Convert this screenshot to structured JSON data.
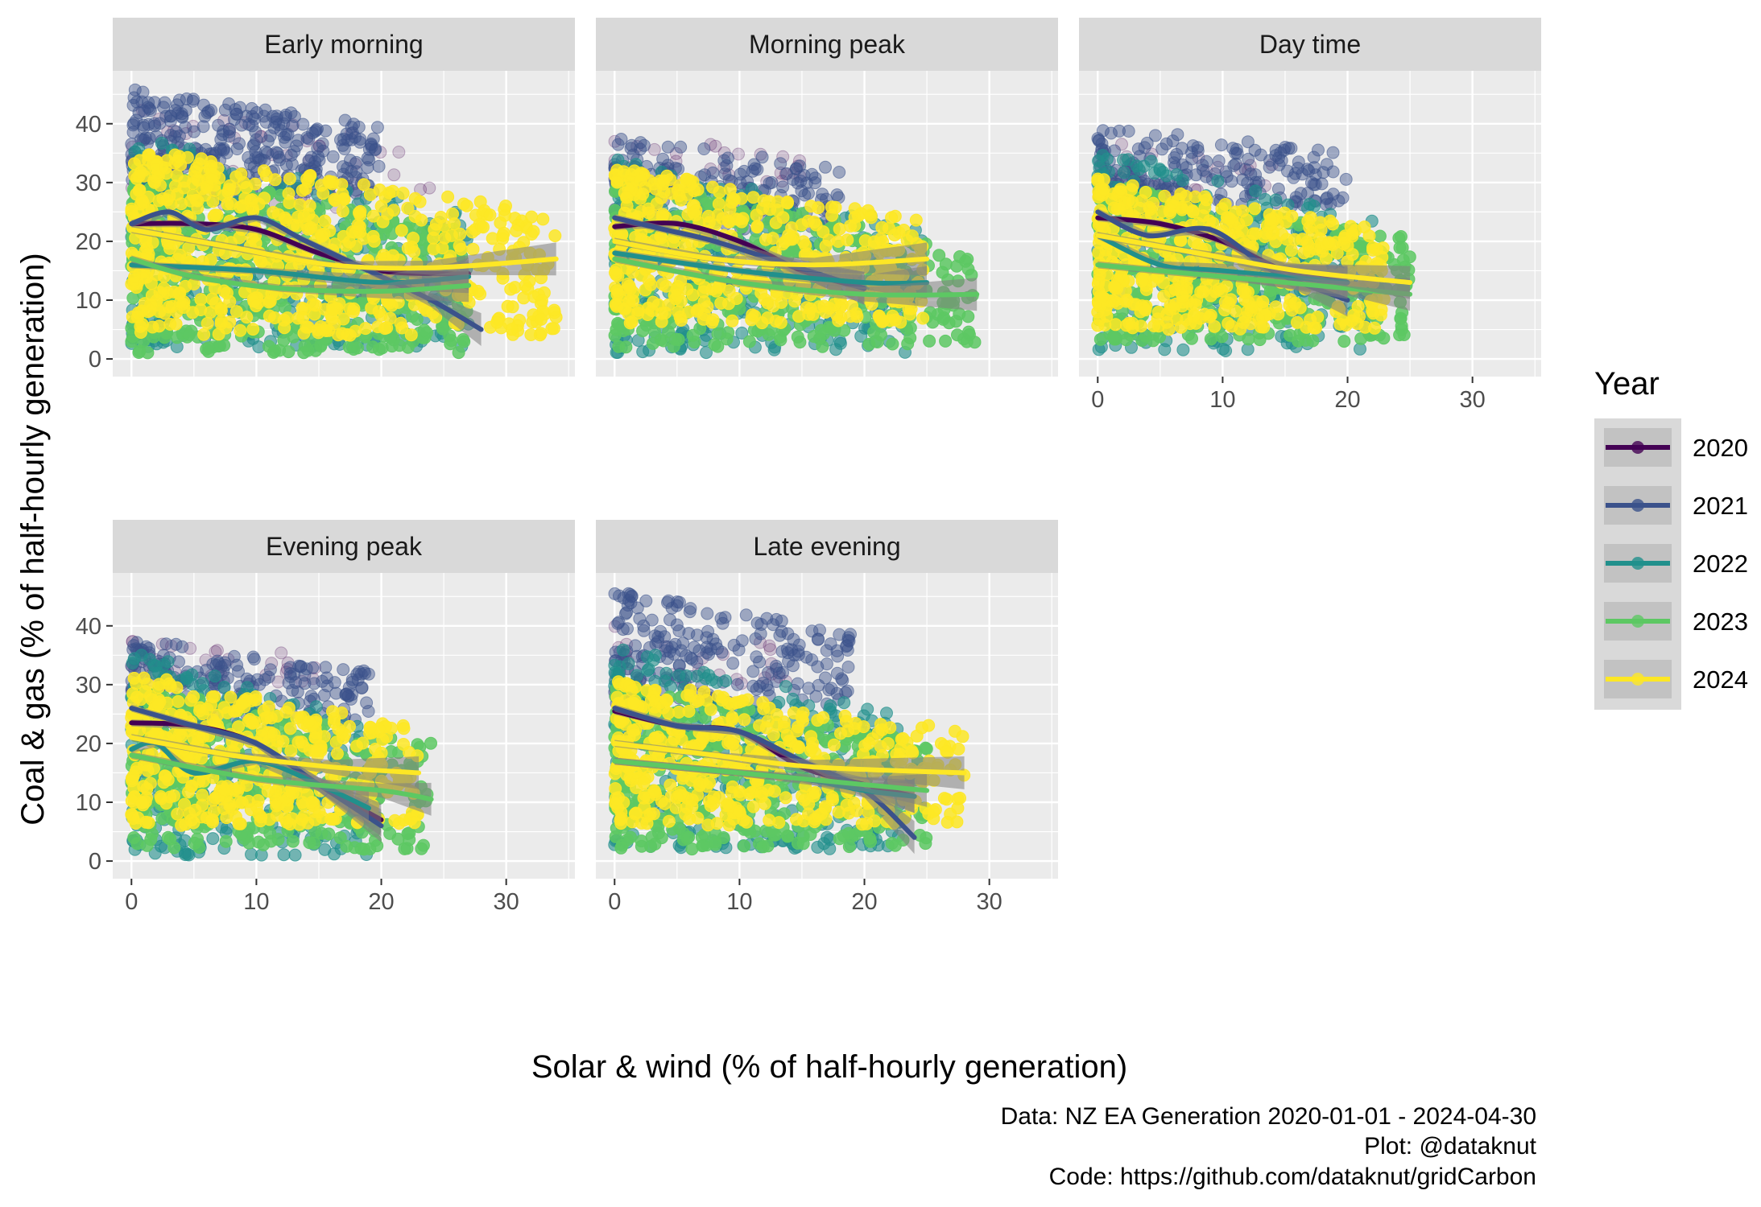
{
  "chart_data": {
    "type": "scatter",
    "subtype": "faceted scatter with smoothed trend lines",
    "xlabel": "Solar & wind (% of half-hourly generation)",
    "ylabel": "Coal & gas (% of half-hourly generation)",
    "xlim": [
      -1.5,
      35.5
    ],
    "ylim": [
      -3,
      49
    ],
    "x_ticks": [
      0,
      10,
      20,
      30
    ],
    "y_ticks": [
      0,
      10,
      20,
      30,
      40
    ],
    "grid": true,
    "legend": {
      "title": "Year",
      "position": "right",
      "entries": [
        {
          "label": "2020",
          "color": "#440154"
        },
        {
          "label": "2021",
          "color": "#3B528B"
        },
        {
          "label": "2022",
          "color": "#21908C"
        },
        {
          "label": "2023",
          "color": "#5DC863"
        },
        {
          "label": "2024",
          "color": "#FDE725"
        }
      ]
    },
    "caption": [
      "Data: NZ EA Generation 2020-01-01 - 2024-04-30",
      "Plot: @dataknut ",
      "Code: https://github.com/dataknut/gridCarbon"
    ],
    "facets": [
      {
        "title": "Early morning",
        "clouds": [
          {
            "year": "2020",
            "x": [
              0,
              24
            ],
            "y": [
              22,
              44
            ],
            "n": 60
          },
          {
            "year": "2021",
            "x": [
              0,
              20
            ],
            "y": [
              28,
              46
            ],
            "n": 320
          },
          {
            "year": "2022",
            "x": [
              0,
              27
            ],
            "y": [
              2,
              38
            ],
            "n": 420
          },
          {
            "year": "2023",
            "x": [
              0,
              27
            ],
            "y": [
              1,
              33
            ],
            "n": 520
          },
          {
            "year": "2024",
            "x": [
              0,
              34
            ],
            "y": [
              4,
              36
            ],
            "n": 620
          }
        ],
        "trends": [
          {
            "year": "2020",
            "x": [
              0,
              5,
              10,
              15,
              20,
              25,
              27
            ],
            "y": [
              23,
              23,
              22,
              18,
              15,
              14.5,
              14.5
            ]
          },
          {
            "year": "2021",
            "x": [
              0,
              3,
              6,
              10,
              14,
              20,
              24,
              28
            ],
            "y": [
              23,
              25,
              22,
              24,
              20,
              14,
              10,
              5
            ]
          },
          {
            "year": "2022",
            "x": [
              0,
              10,
              20,
              27
            ],
            "y": [
              16,
              15,
              13,
              14
            ]
          },
          {
            "year": "2023",
            "x": [
              0,
              5,
              12,
              20,
              27
            ],
            "y": [
              17,
              14,
              12,
              11.5,
              12.5
            ]
          },
          {
            "year": "2024",
            "x": [
              0,
              8,
              16,
              24,
              34
            ],
            "y": [
              22,
              19,
              16,
              15.5,
              17
            ]
          }
        ]
      },
      {
        "title": "Morning peak",
        "clouds": [
          {
            "year": "2020",
            "x": [
              0,
              15
            ],
            "y": [
              30,
              38
            ],
            "n": 30
          },
          {
            "year": "2021",
            "x": [
              0,
              18
            ],
            "y": [
              22,
              38
            ],
            "n": 180
          },
          {
            "year": "2022",
            "x": [
              0,
              25
            ],
            "y": [
              1,
              34
            ],
            "n": 300
          },
          {
            "year": "2023",
            "x": [
              0,
              29
            ],
            "y": [
              2,
              30
            ],
            "n": 380
          },
          {
            "year": "2024",
            "x": [
              0,
              25
            ],
            "y": [
              6,
              33
            ],
            "n": 460
          }
        ],
        "trends": [
          {
            "year": "2020",
            "x": [
              0,
              5,
              10,
              15,
              20
            ],
            "y": [
              22.5,
              23,
              20,
              15,
              12
            ]
          },
          {
            "year": "2021",
            "x": [
              0,
              4,
              8,
              14,
              20
            ],
            "y": [
              24,
              22,
              20,
              16,
              12
            ]
          },
          {
            "year": "2022",
            "x": [
              0,
              10,
              20,
              25
            ],
            "y": [
              18,
              15,
              13,
              13
            ]
          },
          {
            "year": "2023",
            "x": [
              0,
              10,
              20,
              29
            ],
            "y": [
              17,
              13,
              11,
              11
            ]
          },
          {
            "year": "2024",
            "x": [
              0,
              8,
              16,
              25
            ],
            "y": [
              20,
              17,
              16,
              17
            ]
          }
        ]
      },
      {
        "title": "Day time",
        "clouds": [
          {
            "year": "2020",
            "x": [
              0,
              15
            ],
            "y": [
              28,
              37
            ],
            "n": 30
          },
          {
            "year": "2021",
            "x": [
              0,
              20
            ],
            "y": [
              26,
              40
            ],
            "n": 200
          },
          {
            "year": "2022",
            "x": [
              0,
              22
            ],
            "y": [
              1,
              36
            ],
            "n": 320
          },
          {
            "year": "2023",
            "x": [
              0,
              25
            ],
            "y": [
              3,
              30
            ],
            "n": 380
          },
          {
            "year": "2024",
            "x": [
              0,
              23
            ],
            "y": [
              5,
              31
            ],
            "n": 460
          }
        ],
        "trends": [
          {
            "year": "2020",
            "x": [
              0,
              5,
              10,
              15,
              20
            ],
            "y": [
              24,
              23,
              20,
              15,
              13
            ]
          },
          {
            "year": "2021",
            "x": [
              0,
              4,
              9,
              14,
              20
            ],
            "y": [
              25,
              21,
              22,
              15,
              10
            ]
          },
          {
            "year": "2022",
            "x": [
              0,
              5,
              10,
              20
            ],
            "y": [
              21,
              16,
              15,
              13
            ]
          },
          {
            "year": "2023",
            "x": [
              0,
              10,
              20,
              25
            ],
            "y": [
              16,
              14,
              12,
              11
            ]
          },
          {
            "year": "2024",
            "x": [
              0,
              8,
              16,
              25
            ],
            "y": [
              21,
              18,
              15,
              13
            ]
          }
        ]
      },
      {
        "title": "Evening peak",
        "clouds": [
          {
            "year": "2020",
            "x": [
              0,
              15
            ],
            "y": [
              30,
              38
            ],
            "n": 30
          },
          {
            "year": "2021",
            "x": [
              0,
              19
            ],
            "y": [
              24,
              38
            ],
            "n": 200
          },
          {
            "year": "2022",
            "x": [
              0,
              19
            ],
            "y": [
              1,
              36
            ],
            "n": 320
          },
          {
            "year": "2023",
            "x": [
              0,
              24
            ],
            "y": [
              2,
              30
            ],
            "n": 360
          },
          {
            "year": "2024",
            "x": [
              0,
              23
            ],
            "y": [
              6,
              32
            ],
            "n": 440
          }
        ],
        "trends": [
          {
            "year": "2020",
            "x": [
              0,
              5,
              10,
              15,
              20
            ],
            "y": [
              23.5,
              23,
              20,
              13,
              7
            ]
          },
          {
            "year": "2021",
            "x": [
              0,
              5,
              10,
              15,
              20
            ],
            "y": [
              26,
              23,
              20,
              13,
              6
            ]
          },
          {
            "year": "2022",
            "x": [
              0,
              2,
              5,
              10,
              15,
              19
            ],
            "y": [
              19,
              20,
              15,
              17,
              13,
              9
            ]
          },
          {
            "year": "2023",
            "x": [
              0,
              10,
              20,
              24
            ],
            "y": [
              18,
              14,
              12,
              10.5
            ]
          },
          {
            "year": "2024",
            "x": [
              0,
              8,
              16,
              23
            ],
            "y": [
              21,
              18,
              16,
              15
            ]
          }
        ]
      },
      {
        "title": "Late evening",
        "clouds": [
          {
            "year": "2020",
            "x": [
              0,
              15
            ],
            "y": [
              30,
              40
            ],
            "n": 30
          },
          {
            "year": "2021",
            "x": [
              0,
              19
            ],
            "y": [
              26,
              46
            ],
            "n": 220
          },
          {
            "year": "2022",
            "x": [
              0,
              23
            ],
            "y": [
              2,
              37
            ],
            "n": 340
          },
          {
            "year": "2023",
            "x": [
              0,
              25
            ],
            "y": [
              2,
              30
            ],
            "n": 380
          },
          {
            "year": "2024",
            "x": [
              0,
              28
            ],
            "y": [
              6,
              31
            ],
            "n": 460
          }
        ],
        "trends": [
          {
            "year": "2020",
            "x": [
              0,
              5,
              10,
              15,
              20,
              24
            ],
            "y": [
              25.5,
              23,
              22,
              16,
              13,
              11
            ]
          },
          {
            "year": "2021",
            "x": [
              0,
              5,
              10,
              15,
              20,
              24
            ],
            "y": [
              26,
              23,
              22,
              17,
              12,
              4
            ]
          },
          {
            "year": "2022",
            "x": [
              0,
              5,
              10,
              15,
              20,
              24
            ],
            "y": [
              17,
              16,
              15,
              14,
              12,
              11
            ]
          },
          {
            "year": "2023",
            "x": [
              0,
              10,
              20,
              25
            ],
            "y": [
              17,
              15,
              13,
              12
            ]
          },
          {
            "year": "2024",
            "x": [
              0,
              8,
              16,
              28
            ],
            "y": [
              20,
              18,
              16,
              15
            ]
          }
        ]
      }
    ]
  }
}
